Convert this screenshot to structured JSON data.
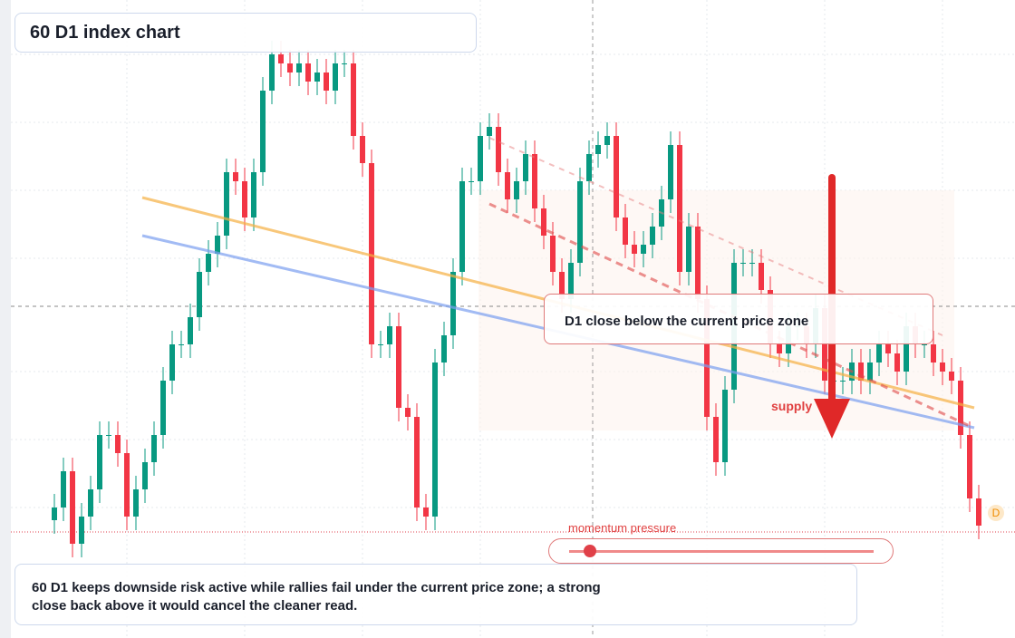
{
  "chart_data": {
    "type": "candlestick",
    "title": "60 D1 index chart",
    "callout": "D1 close below the current price zone",
    "zone_label": "supply",
    "slider_label": "momentum pressure",
    "summary": "60 D1 keeps downside risk active while rallies fail under the current price zone; a strong close back above it would cancel the cleaner read.",
    "badge": "D",
    "up_color": "#089981",
    "down_color": "#f23645",
    "ylim": [
      0,
      704
    ],
    "open": [
      130,
      144,
      184,
      104,
      134,
      164,
      224,
      224,
      204,
      134,
      164,
      194,
      224,
      284,
      324,
      324,
      354,
      404,
      424,
      444,
      514,
      504,
      464,
      514,
      604,
      644,
      634,
      624,
      634,
      614,
      624,
      604,
      634,
      634,
      554,
      524,
      324,
      324,
      344,
      254,
      244,
      144,
      134,
      304,
      334,
      404,
      504,
      504,
      554,
      564,
      514,
      484,
      504,
      534,
      474,
      444,
      404,
      374,
      414,
      504,
      534,
      544,
      554,
      464,
      434,
      424,
      434,
      454,
      484,
      544,
      404,
      454,
      374,
      244,
      194,
      274,
      414,
      414,
      414,
      384,
      324,
      314,
      344,
      344,
      324,
      364,
      284,
      284,
      284,
      304,
      284,
      304,
      324,
      314,
      294,
      344,
      324,
      324,
      304,
      294,
      284,
      224,
      154
    ],
    "high": [
      159,
      199,
      199,
      149,
      179,
      239,
      239,
      239,
      219,
      179,
      209,
      239,
      299,
      339,
      339,
      369,
      419,
      439,
      459,
      529,
      529,
      519,
      529,
      619,
      659,
      659,
      649,
      649,
      649,
      639,
      639,
      649,
      649,
      649,
      569,
      539,
      339,
      359,
      359,
      269,
      259,
      159,
      319,
      349,
      419,
      519,
      519,
      569,
      579,
      579,
      529,
      519,
      549,
      549,
      489,
      459,
      419,
      429,
      519,
      549,
      559,
      569,
      569,
      479,
      449,
      449,
      469,
      499,
      559,
      559,
      469,
      469,
      389,
      259,
      289,
      429,
      429,
      429,
      429,
      399,
      339,
      359,
      359,
      359,
      379,
      379,
      299,
      299,
      319,
      319,
      319,
      339,
      339,
      329,
      359,
      359,
      339,
      339,
      319,
      309,
      299,
      239,
      169
    ],
    "low": [
      115,
      129,
      89,
      89,
      119,
      149,
      209,
      189,
      119,
      119,
      149,
      179,
      209,
      269,
      309,
      309,
      339,
      389,
      409,
      429,
      489,
      449,
      449,
      499,
      589,
      619,
      609,
      609,
      599,
      599,
      589,
      589,
      619,
      539,
      509,
      309,
      309,
      309,
      239,
      229,
      129,
      119,
      119,
      289,
      319,
      389,
      489,
      489,
      539,
      499,
      469,
      469,
      489,
      459,
      429,
      389,
      359,
      359,
      399,
      489,
      519,
      529,
      449,
      419,
      409,
      409,
      419,
      439,
      469,
      389,
      389,
      359,
      229,
      179,
      179,
      259,
      399,
      399,
      369,
      309,
      299,
      299,
      329,
      309,
      309,
      269,
      269,
      269,
      269,
      269,
      269,
      289,
      299,
      279,
      279,
      309,
      309,
      289,
      279,
      269,
      209,
      139,
      109
    ],
    "close": [
      144,
      184,
      104,
      134,
      164,
      224,
      224,
      204,
      134,
      164,
      194,
      224,
      284,
      324,
      324,
      354,
      404,
      424,
      444,
      514,
      504,
      464,
      514,
      604,
      644,
      634,
      624,
      634,
      614,
      624,
      604,
      634,
      634,
      554,
      524,
      324,
      324,
      344,
      254,
      244,
      144,
      134,
      304,
      334,
      404,
      504,
      504,
      554,
      564,
      514,
      484,
      504,
      534,
      474,
      444,
      404,
      374,
      414,
      504,
      534,
      544,
      554,
      464,
      434,
      424,
      434,
      454,
      484,
      544,
      404,
      454,
      374,
      244,
      194,
      274,
      414,
      414,
      414,
      384,
      324,
      314,
      344,
      344,
      324,
      364,
      284,
      284,
      284,
      304,
      284,
      304,
      324,
      314,
      294,
      344,
      324,
      324,
      304,
      294,
      284,
      224,
      154,
      124
    ]
  }
}
